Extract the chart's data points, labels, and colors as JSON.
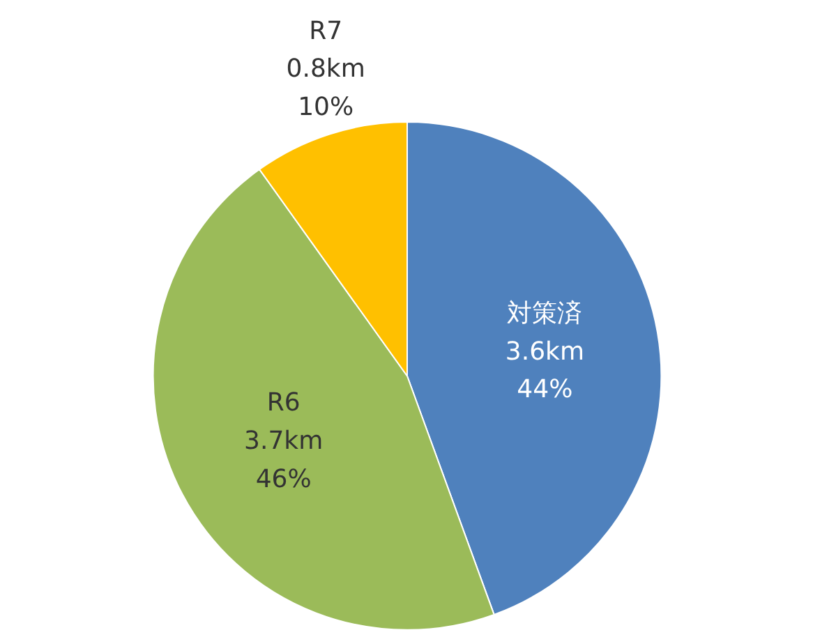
{
  "chart_data": {
    "type": "pie",
    "categories": [
      "対策済",
      "R6",
      "R7"
    ],
    "values": [
      3.6,
      3.7,
      0.8
    ],
    "value_labels": [
      "3.6km\n44%",
      "3.7km\n46%",
      "0.8km\n10%"
    ],
    "colors": [
      "#4f81bd",
      "#9bbb59",
      "#ffc000"
    ]
  }
}
